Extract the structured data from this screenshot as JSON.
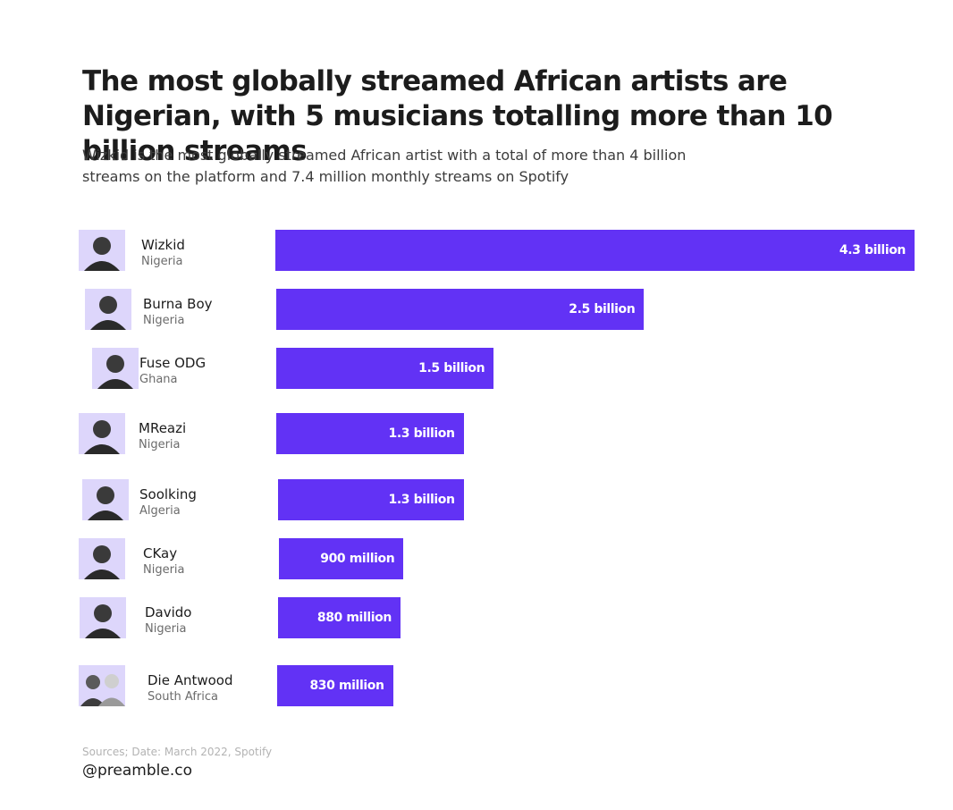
{
  "header": {
    "title": "The most globally streamed African artists are Nigerian, with 5 musicians totalling more than 10 billion streams",
    "subtitle": "Wizkid is the most globally streamed African artist with a total of more than 4 billion streams on the platform and 7.4 million monthly streams on Spotify"
  },
  "footer": {
    "source": "Sources; Date: March 2022, Spotify",
    "handle": "@preamble.co"
  },
  "colors": {
    "bar": "#6232f5",
    "avatar_background": "#ddd6fb",
    "title": "#1c1c1c",
    "source_text": "#b3b3b3"
  },
  "chart_data": {
    "type": "bar",
    "orientation": "horizontal",
    "unit": "streams",
    "categories": [
      "Wizkid",
      "Burna Boy",
      "Fuse ODG",
      "MReazi",
      "Soolking",
      "CKay",
      "Davido",
      "Die Antwood"
    ],
    "countries": [
      "Nigeria",
      "Nigeria",
      "Ghana",
      "Nigeria",
      "Algeria",
      "Nigeria",
      "Nigeria",
      "South Africa"
    ],
    "values": [
      4300000000,
      2500000000,
      1500000000,
      1300000000,
      1300000000,
      900000000,
      880000000,
      830000000
    ],
    "value_labels": [
      "4.3 billion",
      "2.5 billion",
      "1.5 billion",
      "1.3 billion",
      "1.3 billion",
      "900 million",
      "880 million",
      "830 million"
    ],
    "avatars": [
      "artist-photo-icon",
      "artist-photo-icon",
      "artist-photo-icon",
      "artist-photo-icon",
      "artist-photo-icon",
      "artist-photo-icon",
      "artist-photo-icon",
      "duo-photo-icon"
    ],
    "xlim": [
      0,
      4300000000
    ],
    "grid": false,
    "legend": "none"
  }
}
